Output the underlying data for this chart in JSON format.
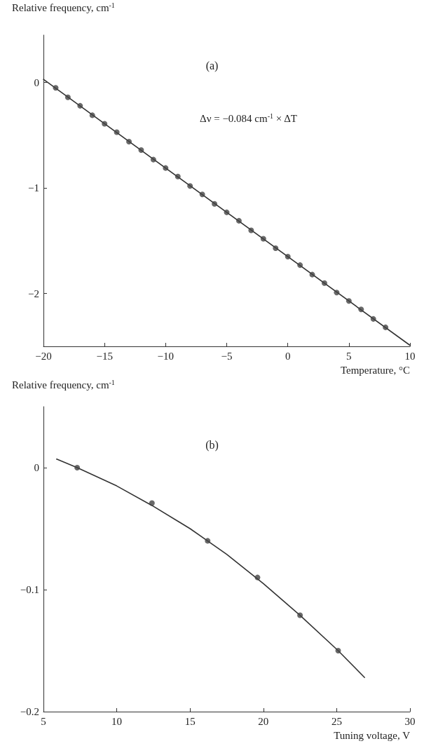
{
  "chart_data": [
    {
      "type": "scatter",
      "title": "(a)",
      "xlabel": "Temperature, °C",
      "ylabel": "Relative frequency, cm$^{-1}$",
      "annotations": [
        "Δν = −0.084 cm$^{-1}$ × ΔT"
      ],
      "xlim": [
        -20,
        10
      ],
      "ylim": [
        -2.5,
        0.45
      ],
      "xticks": [
        {
          "value": -20,
          "label": "−20"
        },
        {
          "value": -15,
          "label": "−15"
        },
        {
          "value": -10,
          "label": "−10"
        },
        {
          "value": -5,
          "label": "−5"
        },
        0,
        5,
        10
      ],
      "yticks": [
        {
          "value": -2,
          "label": "−2"
        },
        {
          "value": -1,
          "label": "−1"
        },
        0
      ],
      "series": [
        {
          "type": "scatter",
          "marker": "circle",
          "color": "#444444",
          "x": [
            -19,
            -18,
            -17,
            -16,
            -15,
            -14,
            -13,
            -12,
            -11,
            -10,
            -9,
            -8,
            -7,
            -6,
            -5,
            -4,
            -3,
            -2,
            -1,
            0,
            1,
            2,
            3,
            4,
            5,
            6,
            7,
            8
          ],
          "values": [
            -0.05,
            -0.14,
            -0.22,
            -0.31,
            -0.39,
            -0.47,
            -0.56,
            -0.64,
            -0.73,
            -0.81,
            -0.89,
            -0.98,
            -1.06,
            -1.15,
            -1.23,
            -1.31,
            -1.4,
            -1.48,
            -1.57,
            -1.65,
            -1.73,
            -1.82,
            -1.9,
            -1.99,
            -2.07,
            -2.15,
            -2.24,
            -2.32
          ]
        },
        {
          "type": "line",
          "marker": "none",
          "line_style": "solid",
          "color": "#333333",
          "x": [
            -20,
            10
          ],
          "values": [
            0.03,
            -2.49
          ]
        }
      ]
    },
    {
      "type": "scatter",
      "title": "(b)",
      "xlabel": "Tuning voltage, V",
      "ylabel": "Relative frequency, cm$^{-1}$",
      "xlim": [
        5,
        30
      ],
      "ylim": [
        -0.2,
        0.05
      ],
      "xticks": [
        5,
        10,
        15,
        20,
        25,
        30
      ],
      "yticks": [
        {
          "value": -0.2,
          "label": "−0.2"
        },
        {
          "value": -0.1,
          "label": "−0.1"
        },
        0
      ],
      "series": [
        {
          "type": "line",
          "marker": "none",
          "line_style": "solid",
          "color": "#333333",
          "x": [
            5.9,
            7.3,
            10,
            12.4,
            15,
            17.5,
            20,
            22.5,
            25.1,
            26.9
          ],
          "values": [
            0.007,
            0,
            -0.015,
            -0.031,
            -0.05,
            -0.071,
            -0.095,
            -0.121,
            -0.15,
            -0.172
          ]
        },
        {
          "type": "scatter",
          "marker": "circle",
          "color": "#444444",
          "x": [
            7.3,
            12.4,
            16.2,
            19.6,
            22.5,
            25.1
          ],
          "values": [
            0,
            -0.029,
            -0.06,
            -0.09,
            -0.121,
            -0.15
          ]
        }
      ]
    }
  ]
}
